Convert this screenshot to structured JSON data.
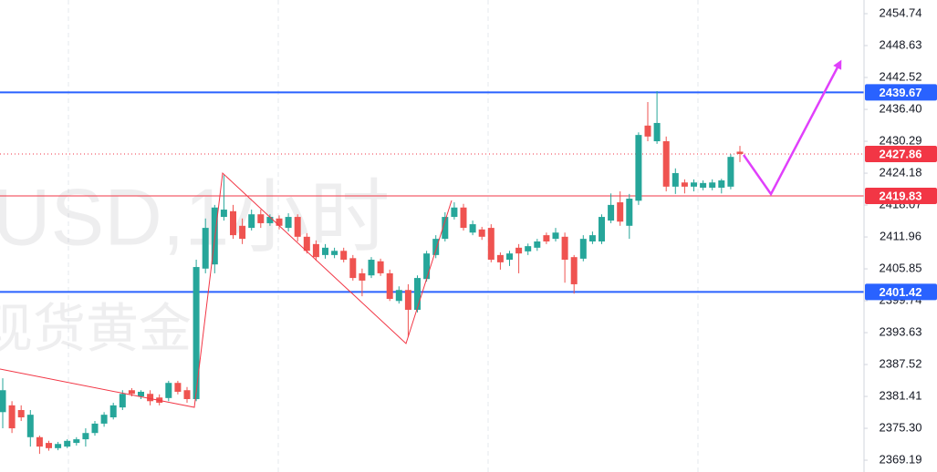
{
  "chart_data": {
    "type": "candlestick",
    "watermark": [
      "USD,1小时",
      "现货黄金"
    ],
    "open": [
      2378.4,
      2379.7,
      2378.8,
      2373.6,
      2373.6,
      2372.5,
      2371.5,
      2371.8,
      2372.5,
      2373.2,
      2374.4,
      2376.2,
      2377.4,
      2379.3,
      2382.6,
      2381.4,
      2381.9,
      2381.2,
      2381.1,
      2384.0,
      2382.6,
      2380.9,
      2405.9,
      2406.7,
      2415.8,
      2416.9,
      2414.1,
      2413.7,
      2416.3,
      2414.6,
      2415.5,
      2413.7,
      2415.8,
      2412.0,
      2410.6,
      2408.5,
      2408.5,
      2409.3,
      2407.9,
      2405.0,
      2404.6,
      2407.3,
      2405.0,
      2399.7,
      2401.8,
      2398.0,
      2403.9,
      2408.5,
      2411.6,
      2415.8,
      2417.6,
      2412.8,
      2413.4,
      2413.7,
      2408.5,
      2407.6,
      2409.9,
      2409.2,
      2409.9,
      2412.3,
      2411.6,
      2412.0,
      2408.1,
      2407.8,
      2411.1,
      2411.1,
      2415.1,
      2418.6,
      2414.1,
      2418.9,
      2433.3,
      2430.3,
      2430.3,
      2421.6,
      2422.4,
      2421.6,
      2421.4,
      2421.4,
      2421.4,
      2421.6,
      2428.3
    ],
    "high": [
      2384.9,
      2380.5,
      2379.7,
      2378.8,
      2373.9,
      2372.9,
      2372.7,
      2373.2,
      2373.6,
      2375.3,
      2376.7,
      2378.4,
      2380.2,
      2382.6,
      2383.0,
      2382.6,
      2382.6,
      2381.8,
      2384.4,
      2384.4,
      2383.2,
      2407.6,
      2415.5,
      2418.1,
      2423.8,
      2418.1,
      2415.5,
      2417.2,
      2417.2,
      2416.3,
      2416.1,
      2416.5,
      2416.3,
      2412.7,
      2411.3,
      2410.6,
      2409.9,
      2409.9,
      2408.5,
      2405.9,
      2408.1,
      2407.8,
      2405.7,
      2402.5,
      2402.9,
      2404.6,
      2409.3,
      2412.3,
      2416.7,
      2418.6,
      2418.3,
      2415.1,
      2413.9,
      2414.4,
      2409.0,
      2409.3,
      2410.6,
      2410.7,
      2411.6,
      2412.8,
      2413.7,
      2412.8,
      2408.5,
      2412.3,
      2413.0,
      2416.3,
      2420.3,
      2420.7,
      2420.2,
      2432.0,
      2437.8,
      2439.9,
      2431.2,
      2425.1,
      2423.0,
      2423.0,
      2422.8,
      2423.0,
      2423.1,
      2427.8,
      2429.4
    ],
    "low": [
      2375.3,
      2374.4,
      2376.7,
      2371.8,
      2370.4,
      2371.0,
      2371.1,
      2371.5,
      2372.0,
      2371.8,
      2373.9,
      2375.6,
      2377.0,
      2378.8,
      2381.4,
      2380.9,
      2379.7,
      2379.7,
      2380.5,
      2381.8,
      2380.2,
      2380.5,
      2405.0,
      2405.0,
      2415.1,
      2411.6,
      2410.6,
      2413.2,
      2413.7,
      2414.1,
      2413.4,
      2413.0,
      2411.1,
      2408.8,
      2407.4,
      2407.8,
      2407.9,
      2407.1,
      2403.6,
      2400.6,
      2404.1,
      2404.5,
      2399.7,
      2399.2,
      2392.8,
      2397.5,
      2403.4,
      2407.9,
      2411.1,
      2415.3,
      2413.2,
      2412.3,
      2411.4,
      2407.1,
      2405.7,
      2406.4,
      2405.0,
      2408.5,
      2409.3,
      2410.6,
      2411.1,
      2403.2,
      2401.1,
      2407.3,
      2410.6,
      2410.6,
      2414.6,
      2414.1,
      2411.6,
      2418.1,
      2430.3,
      2429.8,
      2420.7,
      2420.2,
      2420.3,
      2420.7,
      2420.9,
      2420.9,
      2420.3,
      2421.1,
      2426.3
    ],
    "close": [
      2382.6,
      2375.3,
      2377.4,
      2377.9,
      2371.8,
      2371.5,
      2372.3,
      2372.9,
      2373.2,
      2374.4,
      2376.2,
      2377.9,
      2379.7,
      2381.9,
      2381.9,
      2382.3,
      2380.5,
      2380.2,
      2384.0,
      2382.3,
      2380.9,
      2406.2,
      2413.7,
      2417.6,
      2417.2,
      2412.3,
      2411.6,
      2416.3,
      2414.6,
      2415.8,
      2414.1,
      2415.8,
      2412.0,
      2409.3,
      2408.1,
      2409.9,
      2409.3,
      2407.6,
      2404.1,
      2403.6,
      2407.6,
      2405.0,
      2400.1,
      2401.8,
      2398.0,
      2404.1,
      2408.8,
      2411.6,
      2415.8,
      2417.6,
      2413.7,
      2414.4,
      2412.0,
      2407.6,
      2407.1,
      2408.8,
      2408.8,
      2410.2,
      2411.1,
      2411.1,
      2412.8,
      2407.6,
      2402.9,
      2411.6,
      2412.3,
      2415.8,
      2418.1,
      2414.9,
      2419.3,
      2431.5,
      2431.2,
      2433.8,
      2421.6,
      2424.2,
      2421.6,
      2422.4,
      2422.3,
      2422.4,
      2422.8,
      2427.3,
      2427.86
    ],
    "up_color": "#26a69a",
    "down_color": "#ef5350",
    "ylim": [
      2366.93,
      2457.36
    ],
    "yticks": [
      2454.74,
      2448.63,
      2442.52,
      {
        "value": 2436.4,
        "label": "2436.40"
      },
      2430.29,
      2424.18,
      2418.07,
      2411.96,
      2405.85,
      2399.74,
      2393.63,
      2387.52,
      2381.41,
      {
        "value": 2375.3,
        "label": "2375.30"
      },
      2369.19
    ],
    "levels": [
      {
        "value": 2439.67,
        "color": "#2962ff",
        "style": "solid"
      },
      {
        "value": 2427.86,
        "color": "#f23645",
        "style": "dotted"
      },
      {
        "value": 2419.83,
        "color": "#f23645",
        "style": "solid"
      },
      {
        "value": 2401.42,
        "color": "#2962ff",
        "style": "solid"
      }
    ]
  }
}
